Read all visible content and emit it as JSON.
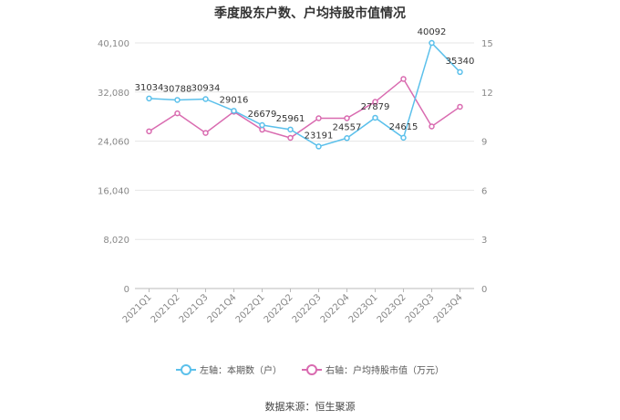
{
  "chart_data": {
    "type": "line",
    "title": "季度股东户数、户均持股市值情况",
    "categories": [
      "2021Q1",
      "2021Q2",
      "2021Q3",
      "2021Q4",
      "2022Q1",
      "2022Q2",
      "2022Q3",
      "2022Q4",
      "2023Q1",
      "2023Q2",
      "2023Q3",
      "2023Q4"
    ],
    "left_axis": {
      "ticks": [
        "0",
        "8,020",
        "16,040",
        "24,060",
        "32,080",
        "40,100"
      ],
      "range": [
        0,
        40100
      ]
    },
    "right_axis": {
      "ticks": [
        "0",
        "3",
        "6",
        "9",
        "12",
        "15"
      ],
      "range": [
        0,
        15
      ]
    },
    "series": [
      {
        "name": "左轴：本期数（户）",
        "axis": "left",
        "color": "#5bc0eb",
        "values": [
          31034,
          30788,
          30934,
          29016,
          26679,
          25961,
          23191,
          24557,
          27879,
          24615,
          40092,
          35340
        ],
        "labels": [
          "31034",
          "30788",
          "30934",
          "29016",
          "26679",
          "25961",
          "23191",
          "24557",
          "27879",
          "24615",
          "40092",
          "35340"
        ]
      },
      {
        "name": "右轴：户均持股市值（万元）",
        "axis": "right",
        "color": "#d96bb0",
        "values": [
          9.6,
          10.7,
          9.5,
          10.8,
          9.7,
          9.2,
          10.4,
          10.4,
          11.4,
          12.8,
          9.9,
          11.1
        ]
      }
    ],
    "grid": true,
    "legend_position": "bottom",
    "source": "数据来源：恒生聚源"
  }
}
